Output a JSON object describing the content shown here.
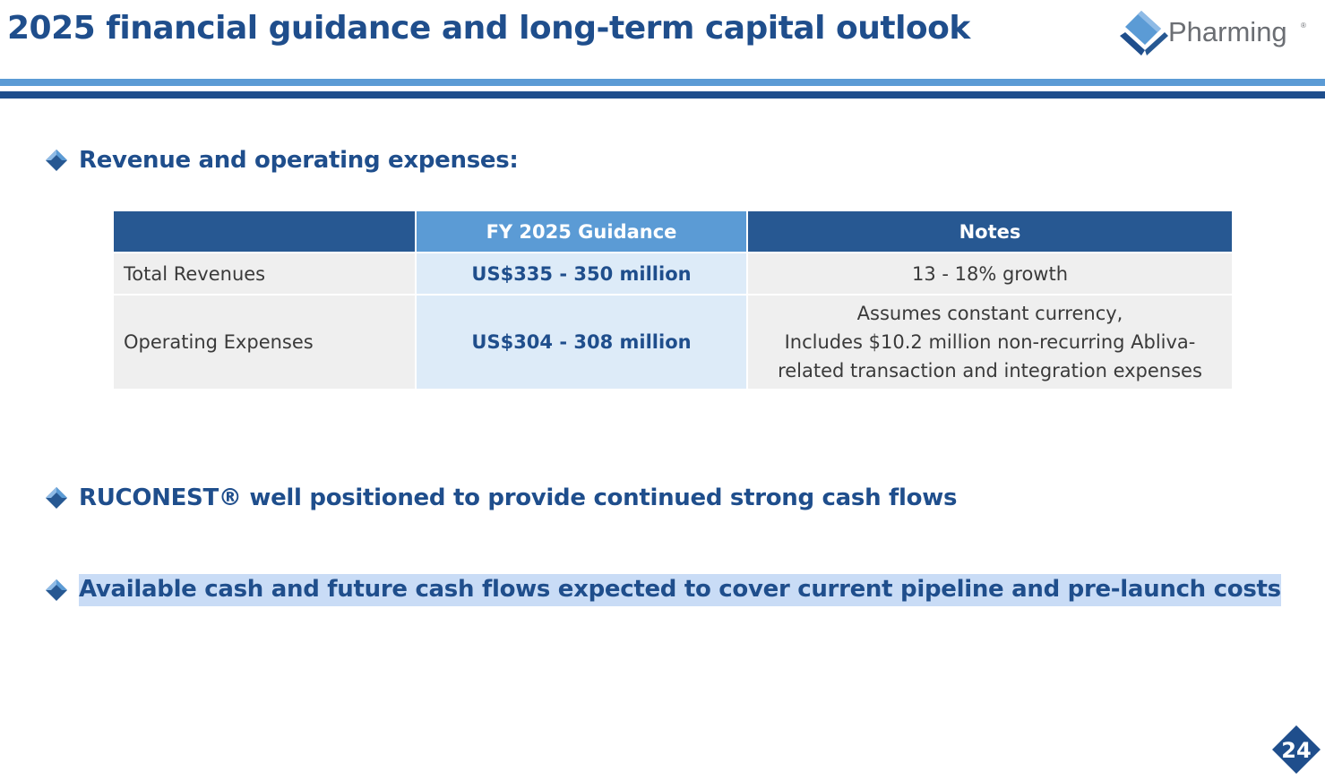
{
  "slide": {
    "title": "2025 financial guidance and long-term capital outlook",
    "page_number": "24"
  },
  "logo": {
    "text": "Pharming",
    "registered": "®"
  },
  "bullets": [
    {
      "text": "Revenue and operating expenses:"
    },
    {
      "text": "RUCONEST® well positioned to provide continued strong cash flows"
    },
    {
      "text": "Available cash and future cash flows expected to cover current pipeline and pre-launch costs"
    }
  ],
  "table": {
    "headers": [
      "",
      "FY 2025 Guidance",
      "Notes"
    ],
    "rows": [
      {
        "label": "Total Revenues",
        "guidance": "US$335 - 350 million",
        "notes": [
          "13 - 18% growth"
        ]
      },
      {
        "label": "Operating Expenses",
        "guidance": "US$304 - 308 million",
        "notes": [
          "Assumes constant currency,",
          "Includes $10.2 million non-recurring Abliva-",
          "related transaction and integration expenses"
        ]
      }
    ]
  },
  "colors": {
    "primary": "#1f4e8c",
    "accent": "#5b9bd5",
    "highlight": "#c9dcf6"
  }
}
